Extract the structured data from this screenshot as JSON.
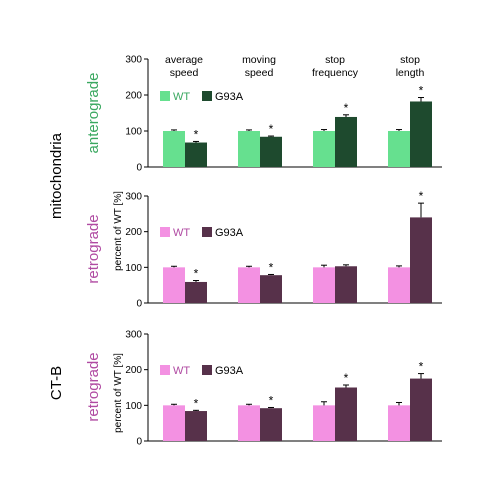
{
  "figure": {
    "row_label_mito": "mitochondria",
    "row_label_ctb": "CT-B",
    "ylabel": "percent of WT [%]",
    "column_headers": [
      [
        "average",
        "speed"
      ],
      [
        "moving",
        "speed"
      ],
      [
        "stop",
        "frequency"
      ],
      [
        "stop",
        "length"
      ]
    ]
  },
  "colors": {
    "antero_wt": "#66e08f",
    "antero_g93a": "#1e4a2e",
    "retro_wt": "#f391e2",
    "retro_g93a": "#57314a",
    "antero_label": "#3aa860",
    "retro_label": "#b04aa2"
  },
  "chart_data": [
    {
      "type": "bar",
      "panel_label": "anterograde",
      "legend": [
        "WT",
        "G93A"
      ],
      "categories": [
        "average speed",
        "moving speed",
        "stop frequency",
        "stop length"
      ],
      "series": [
        {
          "name": "WT",
          "values": [
            100,
            100,
            100,
            100
          ],
          "errors": [
            3,
            3,
            4,
            4
          ]
        },
        {
          "name": "G93A",
          "values": [
            68,
            84,
            139,
            182
          ],
          "errors": [
            3,
            2,
            6,
            11
          ]
        }
      ],
      "significant": [
        true,
        true,
        true,
        true
      ],
      "yticks": [
        0,
        100,
        200,
        300
      ],
      "ylim": [
        0,
        300
      ]
    },
    {
      "type": "bar",
      "panel_label": "retrograde",
      "legend": [
        "WT",
        "G93A"
      ],
      "categories": [
        "average speed",
        "moving speed",
        "stop frequency",
        "stop length"
      ],
      "series": [
        {
          "name": "WT",
          "values": [
            100,
            100,
            100,
            100
          ],
          "errors": [
            3,
            3,
            6,
            4
          ]
        },
        {
          "name": "G93A",
          "values": [
            59,
            78,
            103,
            240
          ],
          "errors": [
            4,
            2,
            4,
            40
          ]
        }
      ],
      "significant": [
        true,
        true,
        false,
        true
      ],
      "yticks": [
        0,
        100,
        200,
        300
      ],
      "ylim": [
        0,
        300
      ]
    },
    {
      "type": "bar",
      "panel_label": "retrograde",
      "legend": [
        "WT",
        "G93A"
      ],
      "categories": [
        "average speed",
        "moving speed",
        "stop frequency",
        "stop length"
      ],
      "series": [
        {
          "name": "WT",
          "values": [
            100,
            100,
            100,
            100
          ],
          "errors": [
            3,
            3,
            10,
            8
          ]
        },
        {
          "name": "G93A",
          "values": [
            84,
            92,
            150,
            175
          ],
          "errors": [
            2,
            2,
            7,
            14
          ]
        }
      ],
      "significant": [
        true,
        true,
        true,
        true
      ],
      "yticks": [
        0,
        100,
        200,
        300
      ],
      "ylim": [
        0,
        300
      ]
    }
  ]
}
